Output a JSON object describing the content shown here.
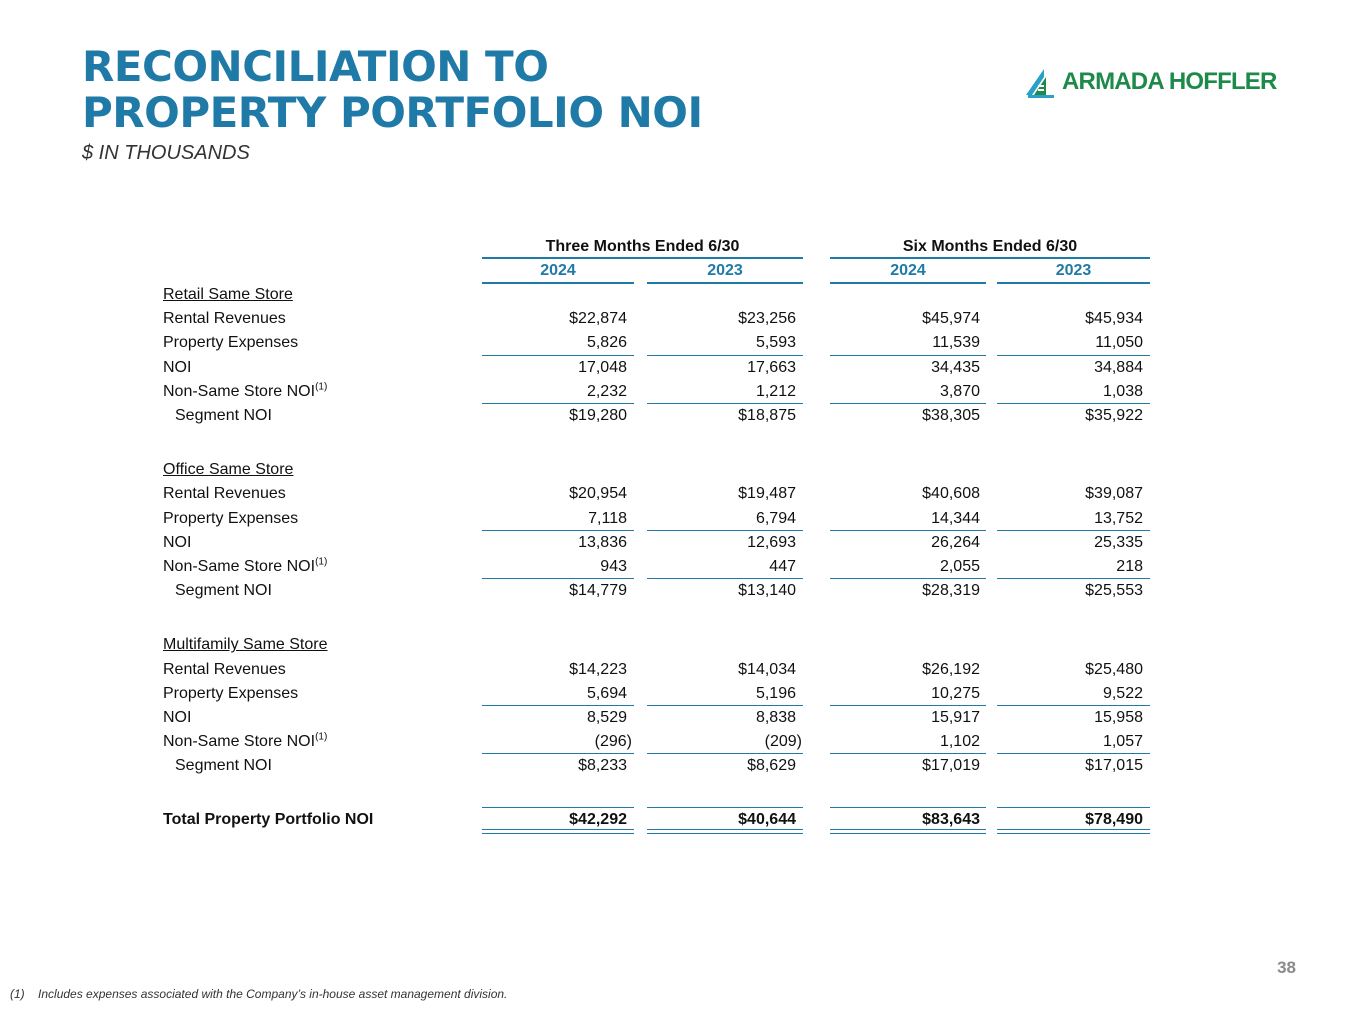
{
  "header": {
    "title_lines": [
      "RECONCILIATION TO",
      "PROPERTY PORTFOLIO NOI"
    ],
    "subtitle": "$ IN THOUSANDS",
    "logo": {
      "icon": "armada-hoffler-logo-icon",
      "text": "ARMADA HOFFLER",
      "color": "#1e8a4a"
    }
  },
  "colors": {
    "accent": "#1f7aa8",
    "logo_green": "#1e8a4a"
  },
  "table": {
    "column_groups": [
      "Three Months Ended 6/30",
      "Six Months Ended 6/30"
    ],
    "years": [
      "2024",
      "2023",
      "2024",
      "2023"
    ],
    "sections": [
      {
        "title": "Retail Same Store",
        "rows": [
          {
            "label": "Rental Revenues",
            "values": [
              "$22,874",
              "$23,256",
              "$45,974",
              "$45,934"
            ]
          },
          {
            "label": "Property Expenses",
            "values": [
              "5,826",
              "5,593",
              "11,539",
              "11,050"
            ]
          },
          {
            "label": "NOI",
            "values": [
              "17,048",
              "17,663",
              "34,435",
              "34,884"
            ]
          },
          {
            "label": "Non-Same Store NOI",
            "footnote": "(1)",
            "values": [
              "2,232",
              "1,212",
              "3,870",
              "1,038"
            ]
          },
          {
            "label": "Segment NOI",
            "values": [
              "$19,280",
              "$18,875",
              "$38,305",
              "$35,922"
            ]
          }
        ]
      },
      {
        "title": "Office Same Store",
        "rows": [
          {
            "label": "Rental Revenues",
            "values": [
              "$20,954",
              "$19,487",
              "$40,608",
              "$39,087"
            ]
          },
          {
            "label": "Property Expenses",
            "values": [
              "7,118",
              "6,794",
              "14,344",
              "13,752"
            ]
          },
          {
            "label": "NOI",
            "values": [
              "13,836",
              "12,693",
              "26,264",
              "25,335"
            ]
          },
          {
            "label": "Non-Same Store NOI",
            "footnote": "(1)",
            "values": [
              "943",
              "447",
              "2,055",
              "218"
            ]
          },
          {
            "label": "Segment NOI",
            "values": [
              "$14,779",
              "$13,140",
              "$28,319",
              "$25,553"
            ]
          }
        ]
      },
      {
        "title": "Multifamily Same Store",
        "rows": [
          {
            "label": "Rental Revenues",
            "values": [
              "$14,223",
              "$14,034",
              "$26,192",
              "$25,480"
            ]
          },
          {
            "label": "Property Expenses",
            "values": [
              "5,694",
              "5,196",
              "10,275",
              "9,522"
            ]
          },
          {
            "label": "NOI",
            "values": [
              "8,529",
              "8,838",
              "15,917",
              "15,958"
            ]
          },
          {
            "label": "Non-Same Store NOI",
            "footnote": "(1)",
            "values": [
              "(296)",
              "(209)",
              "1,102",
              "1,057"
            ]
          },
          {
            "label": "Segment NOI",
            "values": [
              "$8,233",
              "$8,629",
              "$17,019",
              "$17,015"
            ]
          }
        ]
      }
    ],
    "total": {
      "label": "Total Property Portfolio NOI",
      "values": [
        "$42,292",
        "$40,644",
        "$83,643",
        "$78,490"
      ]
    }
  },
  "footnote": {
    "mark": "(1)",
    "text": "Includes expenses associated with the Company’s in-house asset management division."
  },
  "page_number": "38"
}
